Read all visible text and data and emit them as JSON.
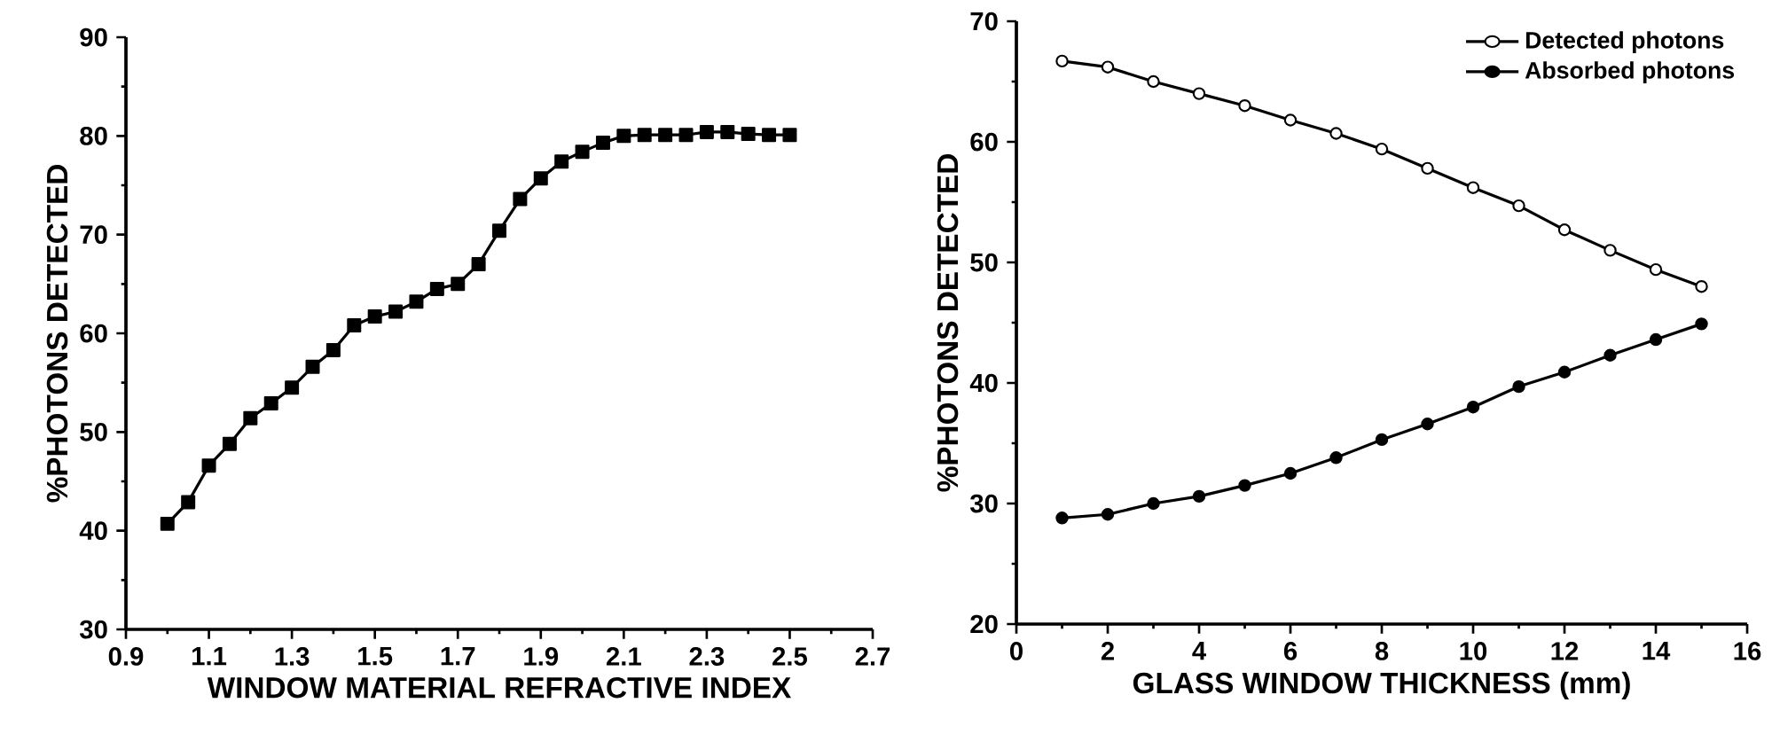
{
  "chart_data": [
    {
      "type": "line",
      "xlabel": "WINDOW  MATERIAL REFRACTIVE  INDEX",
      "ylabel": "%PHOTONS DETECTED",
      "x": [
        1.0,
        1.05,
        1.1,
        1.15,
        1.2,
        1.25,
        1.3,
        1.35,
        1.4,
        1.45,
        1.5,
        1.55,
        1.6,
        1.65,
        1.7,
        1.75,
        1.8,
        1.85,
        1.9,
        1.95,
        2.0,
        2.05,
        2.1,
        2.15,
        2.2,
        2.25,
        2.3,
        2.35,
        2.4,
        2.45,
        2.5
      ],
      "series": [
        {
          "color": "#000000",
          "marker": "square",
          "values": [
            40.7,
            42.9,
            46.6,
            48.8,
            51.4,
            52.9,
            54.5,
            56.6,
            58.3,
            60.8,
            61.7,
            62.2,
            63.2,
            64.5,
            65.0,
            67.0,
            70.4,
            73.6,
            75.7,
            77.4,
            78.4,
            79.3,
            80.0,
            80.1,
            80.1,
            80.1,
            80.4,
            80.4,
            80.2,
            80.1,
            80.1
          ]
        }
      ],
      "xlim": [
        0.9,
        2.7
      ],
      "xticks": [
        0.9,
        1.1,
        1.3,
        1.5,
        1.7,
        1.9,
        2.1,
        2.3,
        2.5,
        2.7
      ],
      "ylim": [
        30,
        90
      ],
      "yticks": [
        30,
        40,
        50,
        60,
        70,
        80,
        90
      ],
      "grid": false,
      "legend": false,
      "line_style": "solid"
    },
    {
      "type": "line",
      "xlabel": "GLASS WINDOW THICKNESS (mm)",
      "ylabel": "%PHOTONS DETECTED",
      "x": [
        1,
        2,
        3,
        4,
        5,
        6,
        7,
        8,
        9,
        10,
        11,
        12,
        13,
        14,
        15
      ],
      "series": [
        {
          "name": "Detected photons",
          "color": "#000000",
          "marker": "circle",
          "values": [
            66.7,
            66.2,
            65.0,
            64.0,
            63.0,
            61.8,
            60.7,
            59.4,
            57.8,
            56.2,
            54.7,
            52.7,
            51.0,
            49.4,
            48.0
          ]
        },
        {
          "name": "Absorbed photons",
          "color": "#000000",
          "marker": "circle",
          "values": [
            28.8,
            29.1,
            30.0,
            30.6,
            31.5,
            32.5,
            33.8,
            35.3,
            36.6,
            38.0,
            39.7,
            40.9,
            42.3,
            43.6,
            44.9
          ]
        }
      ],
      "xlim": [
        0,
        16
      ],
      "xticks": [
        0,
        2,
        4,
        6,
        8,
        10,
        12,
        14,
        16
      ],
      "ylim": [
        20,
        70
      ],
      "yticks": [
        20,
        30,
        40,
        50,
        60,
        70
      ],
      "grid": false,
      "legend": "top right",
      "line_style": "solid"
    }
  ]
}
